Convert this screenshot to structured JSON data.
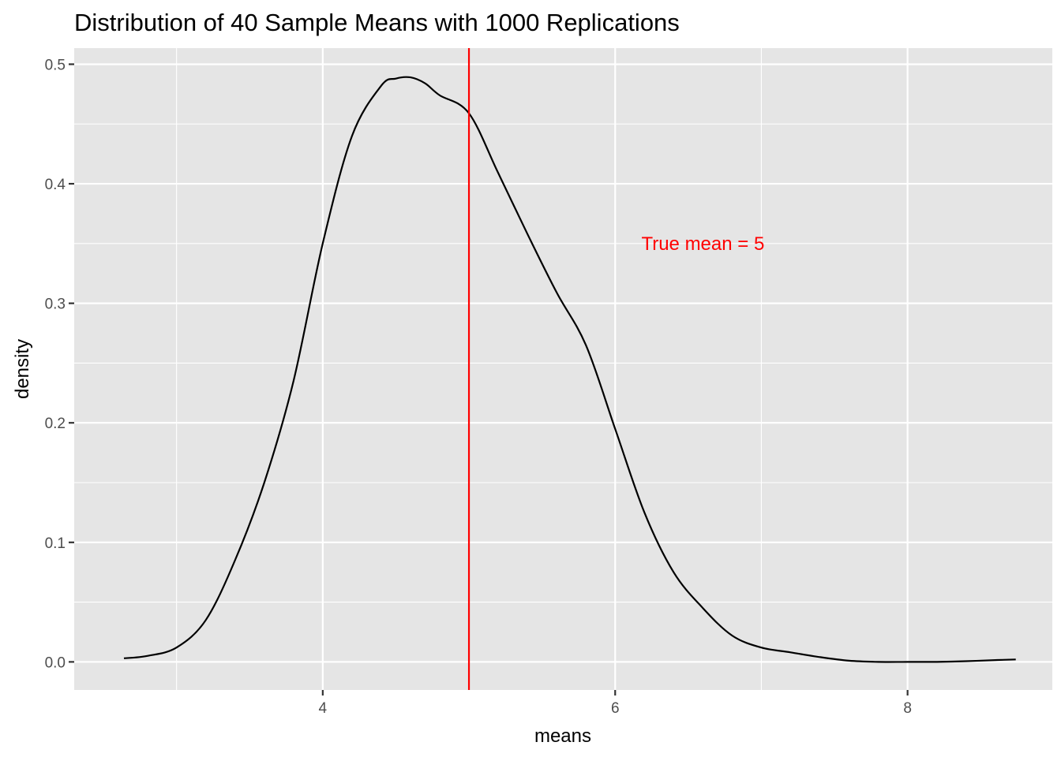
{
  "chart_data": {
    "type": "line",
    "title": "Distribution of 40 Sample Means with 1000 Replications",
    "xlabel": "means",
    "ylabel": "density",
    "xlim": [
      2.3,
      8.99
    ],
    "ylim": [
      -0.0235,
      0.5135
    ],
    "x_ticks": [
      4,
      6,
      8
    ],
    "x_tick_labels": [
      "4",
      "6",
      "8"
    ],
    "x_minor_ticks": [
      3,
      5,
      7,
      9
    ],
    "y_ticks": [
      0.0,
      0.1,
      0.2,
      0.3,
      0.4,
      0.5
    ],
    "y_tick_labels": [
      "0.0",
      "0.1",
      "0.2",
      "0.3",
      "0.4",
      "0.5"
    ],
    "y_minor_ticks": [
      0.05,
      0.15,
      0.25,
      0.35,
      0.45
    ],
    "grid": true,
    "background": "#e5e5e5",
    "series": [
      {
        "color": "#000000",
        "x": [
          2.64,
          2.8,
          3.0,
          3.2,
          3.4,
          3.6,
          3.8,
          4.0,
          4.2,
          4.4,
          4.5,
          4.6,
          4.7,
          4.8,
          5.0,
          5.2,
          5.4,
          5.6,
          5.8,
          6.0,
          6.2,
          6.4,
          6.6,
          6.8,
          7.0,
          7.2,
          7.4,
          7.6,
          7.8,
          8.0,
          8.2,
          8.4,
          8.6,
          8.74
        ],
        "y": [
          0.003,
          0.005,
          0.012,
          0.035,
          0.085,
          0.15,
          0.235,
          0.35,
          0.44,
          0.482,
          0.488,
          0.489,
          0.484,
          0.474,
          0.459,
          0.409,
          0.358,
          0.309,
          0.265,
          0.195,
          0.125,
          0.075,
          0.045,
          0.022,
          0.012,
          0.008,
          0.004,
          0.001,
          0.0,
          0.0,
          0.0,
          0.0006,
          0.0015,
          0.002
        ]
      }
    ],
    "reference_line": {
      "x": 5,
      "color": "#ff0000"
    },
    "annotation": {
      "text": "True mean = 5",
      "x": 6.6,
      "y": 0.35,
      "color": "#ff0000"
    }
  }
}
